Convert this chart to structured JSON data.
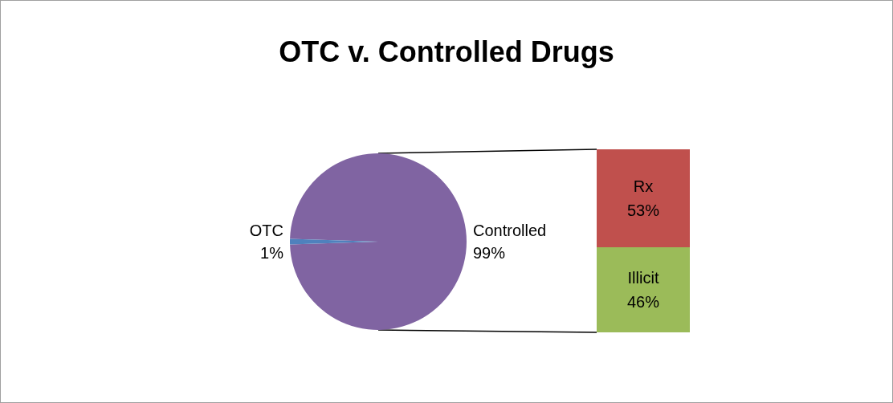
{
  "chart_data": [
    {
      "type": "pie",
      "title": "OTC v. Controlled Drugs",
      "categories": [
        "OTC",
        "Controlled"
      ],
      "values": [
        1,
        99
      ],
      "colors": [
        "#4f81bd",
        "#8064a2"
      ],
      "value_labels": [
        "1%",
        "99%"
      ],
      "legend": false
    },
    {
      "type": "bar",
      "stacked": true,
      "categories": [
        null
      ],
      "legend": false,
      "series": [
        {
          "name": "Illicit",
          "color": "#9bbb59",
          "values": [
            46
          ],
          "value_labels": [
            "46%"
          ]
        },
        {
          "name": "Rx",
          "color": "#c0504d",
          "values": [
            53
          ],
          "value_labels": [
            "53%"
          ]
        }
      ]
    }
  ]
}
